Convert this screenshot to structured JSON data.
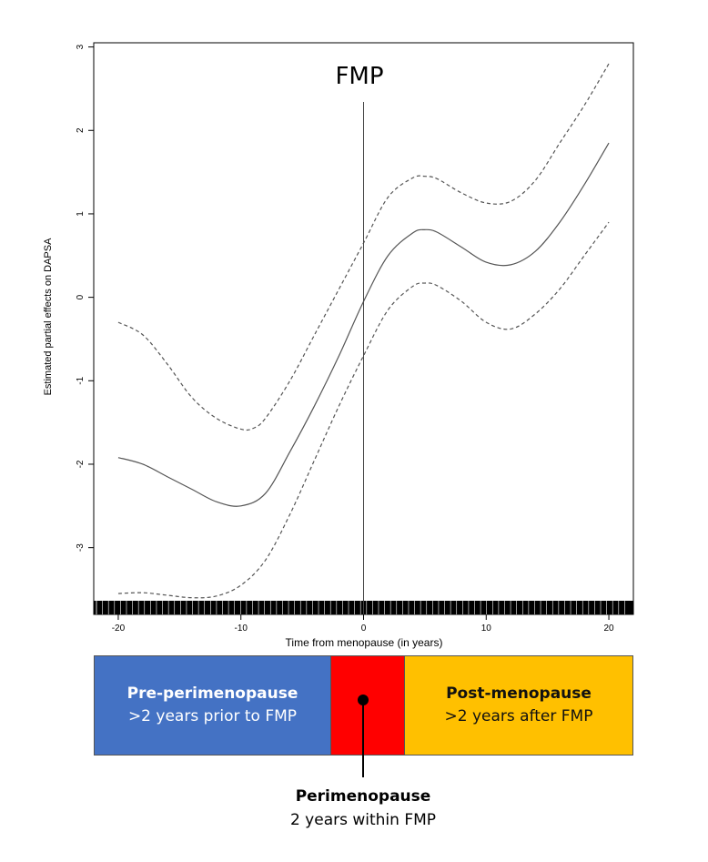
{
  "chart_data": {
    "type": "line",
    "xlabel": "Time from menopause (in years)",
    "ylabel": "Estimated partial effects on DAPSA",
    "xlim": [
      -22,
      22
    ],
    "ylim": [
      -3.8,
      3.05
    ],
    "x_ticks": [
      -20,
      -10,
      0,
      10,
      20
    ],
    "y_ticks": [
      -3,
      -2,
      -1,
      0,
      1,
      2,
      3
    ],
    "rug": true,
    "vline": {
      "x": 0,
      "label": "FMP"
    },
    "series": [
      {
        "style": "solid",
        "x": [
          -20,
          -18,
          -16,
          -14,
          -12,
          -10,
          -8,
          -6,
          -4,
          -2,
          0,
          2,
          4,
          5,
          6,
          8,
          10,
          12,
          14,
          16,
          18,
          20
        ],
        "y": [
          -1.92,
          -2.0,
          -2.15,
          -2.3,
          -2.45,
          -2.5,
          -2.35,
          -1.85,
          -1.3,
          -0.7,
          -0.05,
          0.5,
          0.77,
          0.81,
          0.78,
          0.6,
          0.42,
          0.39,
          0.55,
          0.9,
          1.35,
          1.85
        ]
      },
      {
        "style": "dashed",
        "x": [
          -20,
          -18,
          -16,
          -14,
          -12,
          -10,
          -9,
          -8,
          -6,
          -4,
          -2,
          0,
          2,
          4,
          5,
          6,
          8,
          10,
          12,
          14,
          16,
          18,
          20
        ],
        "y": [
          -0.3,
          -0.45,
          -0.8,
          -1.2,
          -1.45,
          -1.58,
          -1.57,
          -1.45,
          -1.0,
          -0.45,
          0.1,
          0.65,
          1.2,
          1.43,
          1.45,
          1.42,
          1.25,
          1.13,
          1.15,
          1.4,
          1.85,
          2.3,
          2.8
        ]
      },
      {
        "style": "dashed",
        "x": [
          -20,
          -18,
          -16,
          -14,
          -12,
          -10,
          -8,
          -6,
          -4,
          -2,
          0,
          2,
          4,
          5,
          6,
          8,
          10,
          12,
          14,
          16,
          18,
          20
        ],
        "y": [
          -3.55,
          -3.54,
          -3.57,
          -3.6,
          -3.58,
          -3.45,
          -3.15,
          -2.6,
          -1.95,
          -1.3,
          -0.7,
          -0.15,
          0.13,
          0.17,
          0.14,
          -0.05,
          -0.3,
          -0.38,
          -0.2,
          0.1,
          0.5,
          0.9
        ]
      }
    ]
  },
  "phases": {
    "pre": {
      "name": "Pre-perimenopause",
      "desc": ">2 years prior to FMP",
      "color": "#4472c4"
    },
    "peri": {
      "name": "Perimenopause",
      "desc": "2 years within FMP",
      "color": "#ff0000"
    },
    "post": {
      "name": "Post-menopause",
      "desc": ">2 years after FMP",
      "color": "#ffc000"
    }
  }
}
